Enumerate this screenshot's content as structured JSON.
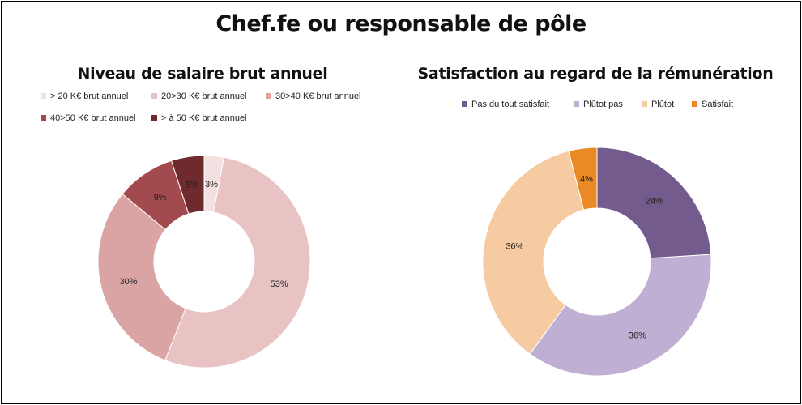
{
  "main_title": "Chef.fe ou responsable de pôle",
  "chart_data": [
    {
      "type": "pie",
      "title": "Niveau de salaire brut annuel",
      "categories": [
        "> 20 K€ brut annuel",
        "20>30 K€ brut annuel",
        "30>40 K€ brut annuel",
        "40>50 K€ brut annuel",
        "> à 50 K€ brut annuel"
      ],
      "values": [
        3,
        53,
        30,
        9,
        5
      ],
      "labels": [
        "3%",
        "53%",
        "30%",
        "9%",
        "5%"
      ],
      "colors": [
        "#f3e1e1",
        "#e9c3c3",
        "#dba4a4",
        "#a24b4e",
        "#6e2a2c"
      ],
      "legend_position": "top"
    },
    {
      "type": "pie",
      "title": "Satisfaction au regard de la rémunération",
      "categories": [
        "Pas du tout satisfait",
        "Plûtot pas",
        "Plûtot",
        "Satisfait"
      ],
      "values": [
        24,
        36,
        36,
        4
      ],
      "labels": [
        "24%",
        "36%",
        "36%",
        "4%"
      ],
      "colors": [
        "#745b8e",
        "#bfb0d3",
        "#f6cba2",
        "#e98a24"
      ],
      "legend_position": "top"
    }
  ]
}
